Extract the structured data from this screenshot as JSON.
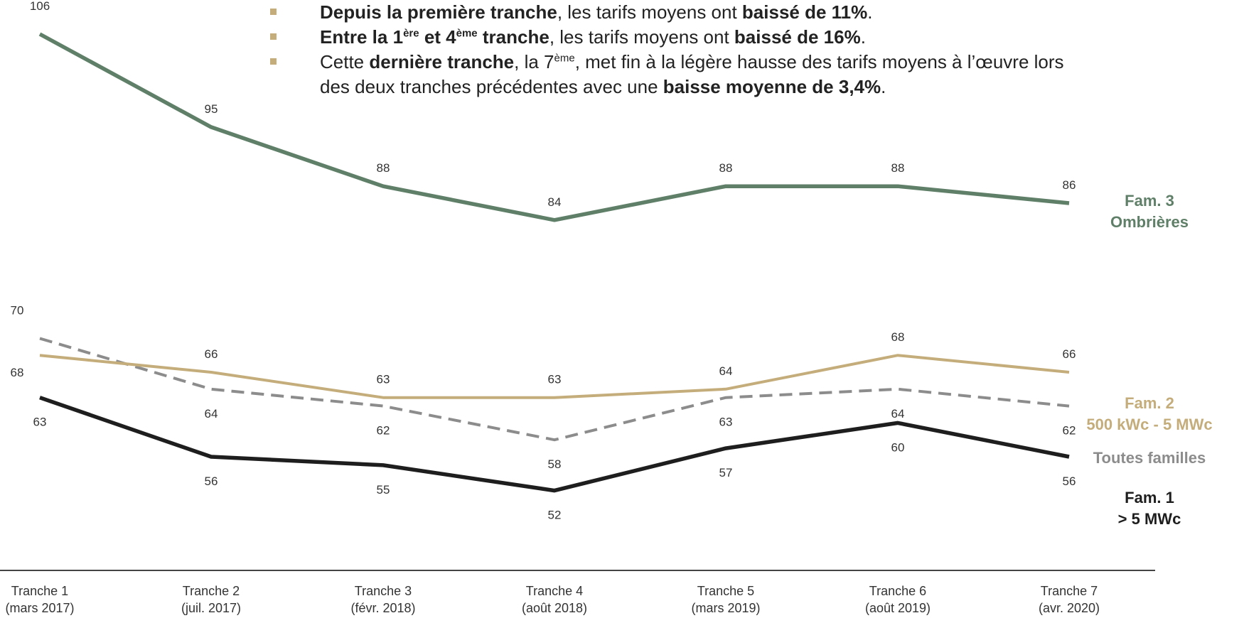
{
  "bullets": [
    {
      "parts": [
        {
          "t": "Depuis la première tranche",
          "b": true
        },
        {
          "t": ", les tarifs moyens ont "
        },
        {
          "t": "baissé de 11%",
          "b": true
        },
        {
          "t": "."
        }
      ]
    },
    {
      "parts": [
        {
          "t": "Entre la 1",
          "b": true
        },
        {
          "t": "ère",
          "b": true,
          "sup": true
        },
        {
          "t": " et 4",
          "b": true
        },
        {
          "t": "ème",
          "b": true,
          "sup": true
        },
        {
          "t": " tranche",
          "b": true
        },
        {
          "t": ", les tarifs moyens ont "
        },
        {
          "t": "baissé de 16%",
          "b": true
        },
        {
          "t": "."
        }
      ]
    },
    {
      "parts": [
        {
          "t": "Cette "
        },
        {
          "t": "dernière tranche",
          "b": true
        },
        {
          "t": ", la 7"
        },
        {
          "t": "ème",
          "sup": true
        },
        {
          "t": ", met fin à la légère hausse des tarifs moyens à l’œuvre lors des deux tranches précédentes avec une "
        },
        {
          "t": "baisse moyenne de 3,4%",
          "b": true
        },
        {
          "t": "."
        }
      ]
    }
  ],
  "chart_data": {
    "type": "line",
    "categories": [
      [
        "Tranche 1",
        "(mars 2017)"
      ],
      [
        "Tranche 2",
        "(juil. 2017)"
      ],
      [
        "Tranche 3",
        "(févr. 2018)"
      ],
      [
        "Tranche 4",
        "(août 2018)"
      ],
      [
        "Tranche 5",
        "(mars 2019)"
      ],
      [
        "Tranche 6",
        "(août 2019)"
      ],
      [
        "Tranche 7",
        "(avr. 2020)"
      ]
    ],
    "series": [
      {
        "id": "fam3",
        "name": [
          "Fam. 3",
          "Ombrières"
        ],
        "values": [
          106,
          95,
          88,
          84,
          88,
          88,
          86
        ],
        "color": "#5f7f68",
        "style": "solid"
      },
      {
        "id": "fam2",
        "name": [
          "Fam. 2",
          "500 kWc - 5 MWc"
        ],
        "values": [
          68,
          66,
          63,
          63,
          64,
          68,
          66
        ],
        "color": "#c4ad7a",
        "style": "solid"
      },
      {
        "id": "all",
        "name": [
          "Toutes familles"
        ],
        "values": [
          70,
          64,
          62,
          58,
          63,
          64,
          62
        ],
        "color": "#8c8c8c",
        "style": "dashed"
      },
      {
        "id": "fam1",
        "name": [
          "Fam. 1",
          "> 5 MWc"
        ],
        "values": [
          63,
          56,
          55,
          52,
          57,
          60,
          56
        ],
        "color": "#1e1e1e",
        "style": "solid"
      }
    ]
  }
}
